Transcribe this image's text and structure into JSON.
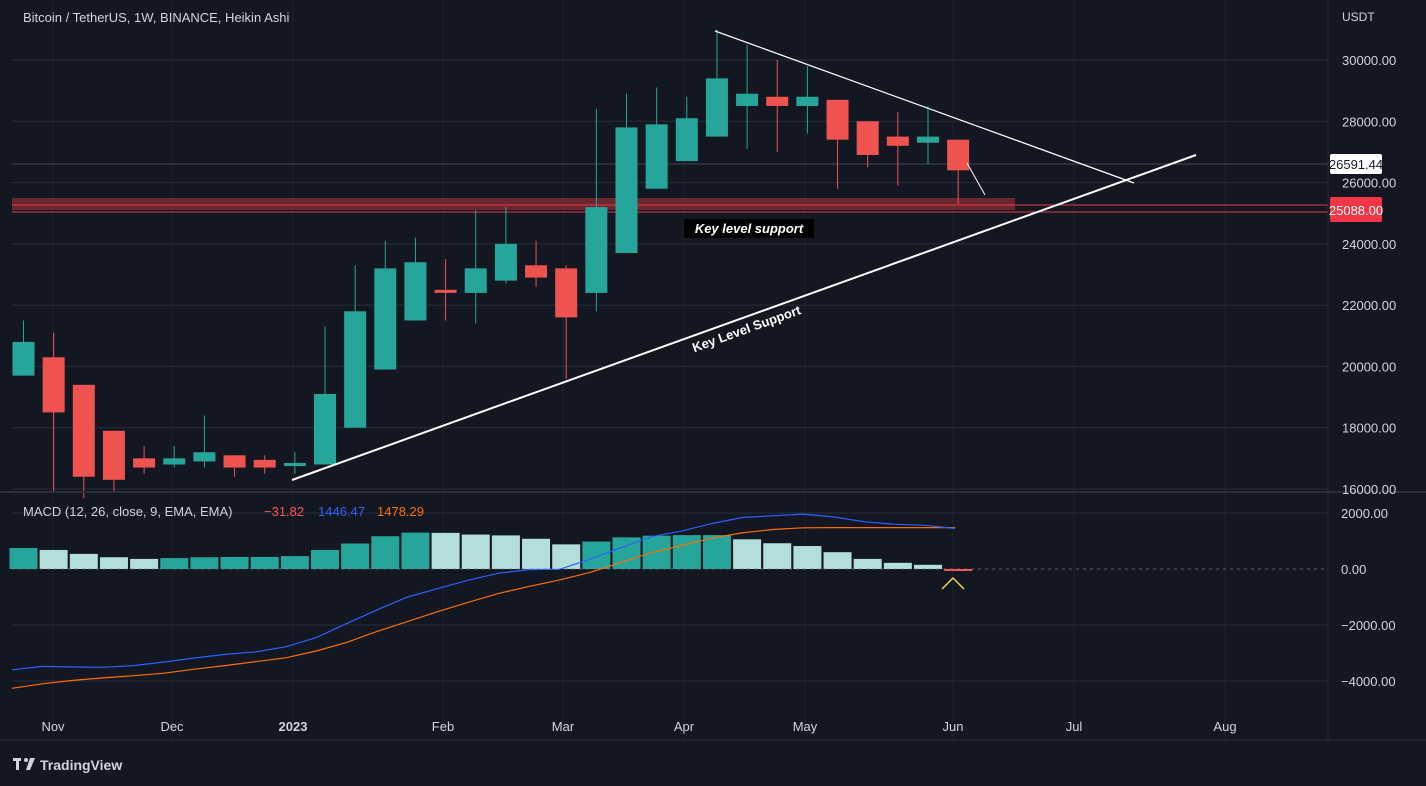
{
  "header": {
    "title": "Bitcoin / TetherUS, 1W, BINANCE, Heikin Ashi",
    "currency": "USDT"
  },
  "footer": {
    "brand": "TradingView"
  },
  "colors": {
    "background": "#131722",
    "up": "#26a69a",
    "down": "#ef5350",
    "grid": "#2a2e39",
    "macd": "#2962ff",
    "signal": "#ff6d00",
    "hist_up_strong": "#26a69a",
    "hist_up_weak": "#b2dfdb",
    "hist_down": "#ff5252",
    "support_zone": "#7a2a33",
    "current_price": "#ffffff",
    "level": "#f23645"
  },
  "price_labels": {
    "current": "26591.44",
    "level": "25088.00"
  },
  "annotations": {
    "zone_label": "Key level support",
    "trendline_label": "Key Level Support"
  },
  "macd_legend": {
    "name": "MACD (12, 26, close, 9, EMA, EMA)",
    "hist": "−31.82",
    "macd": "1446.47",
    "signal": "1478.29"
  },
  "chart_data": [
    {
      "type": "candlestick",
      "title": "Bitcoin / TetherUS, 1W, BINANCE, Heikin Ashi",
      "x_ticks": [
        "Nov",
        "Dec",
        "2023",
        "Feb",
        "Mar",
        "Apr",
        "May",
        "Jun",
        "Jul",
        "Aug"
      ],
      "y_ticks": [
        "16000.00",
        "18000.00",
        "20000.00",
        "22000.00",
        "24000.00",
        "26000.00",
        "28000.00",
        "30000.00"
      ],
      "ylim": [
        16000,
        31500
      ],
      "candles": [
        {
          "o": 19700,
          "h": 21500,
          "l": 19700,
          "c": 20800
        },
        {
          "o": 20300,
          "h": 21100,
          "l": 15900,
          "c": 18500
        },
        {
          "o": 19400,
          "h": 19400,
          "l": 15700,
          "c": 16400
        },
        {
          "o": 17900,
          "h": 17900,
          "l": 15900,
          "c": 16300
        },
        {
          "o": 17000,
          "h": 17400,
          "l": 16500,
          "c": 16700
        },
        {
          "o": 16800,
          "h": 17400,
          "l": 16700,
          "c": 17000
        },
        {
          "o": 16900,
          "h": 18400,
          "l": 16700,
          "c": 17200
        },
        {
          "o": 17100,
          "h": 17100,
          "l": 16400,
          "c": 16700
        },
        {
          "o": 16950,
          "h": 17100,
          "l": 16500,
          "c": 16700
        },
        {
          "o": 16750,
          "h": 17200,
          "l": 16500,
          "c": 16850
        },
        {
          "o": 16800,
          "h": 21300,
          "l": 16800,
          "c": 19100
        },
        {
          "o": 18000,
          "h": 23300,
          "l": 18000,
          "c": 21800
        },
        {
          "o": 19900,
          "h": 24100,
          "l": 19900,
          "c": 23200
        },
        {
          "o": 21500,
          "h": 24200,
          "l": 21500,
          "c": 23400
        },
        {
          "o": 22500,
          "h": 23500,
          "l": 21500,
          "c": 22400
        },
        {
          "o": 22400,
          "h": 25100,
          "l": 21400,
          "c": 23200
        },
        {
          "o": 22800,
          "h": 25200,
          "l": 22700,
          "c": 24000
        },
        {
          "o": 23300,
          "h": 24100,
          "l": 22600,
          "c": 22900
        },
        {
          "o": 23200,
          "h": 23300,
          "l": 19600,
          "c": 21600
        },
        {
          "o": 22400,
          "h": 28400,
          "l": 21800,
          "c": 25200
        },
        {
          "o": 23700,
          "h": 28900,
          "l": 23700,
          "c": 27800
        },
        {
          "o": 25800,
          "h": 29100,
          "l": 25800,
          "c": 27900
        },
        {
          "o": 26700,
          "h": 28800,
          "l": 26700,
          "c": 28100
        },
        {
          "o": 27500,
          "h": 31000,
          "l": 27500,
          "c": 29400
        },
        {
          "o": 28500,
          "h": 30500,
          "l": 27100,
          "c": 28900
        },
        {
          "o": 28800,
          "h": 30000,
          "l": 27000,
          "c": 28500
        },
        {
          "o": 28500,
          "h": 29800,
          "l": 27600,
          "c": 28800
        },
        {
          "o": 28700,
          "h": 28700,
          "l": 25800,
          "c": 27400
        },
        {
          "o": 28000,
          "h": 28000,
          "l": 26500,
          "c": 26900
        },
        {
          "o": 27500,
          "h": 28300,
          "l": 25900,
          "c": 27200
        },
        {
          "o": 27300,
          "h": 28500,
          "l": 26600,
          "c": 27500
        },
        {
          "o": 27400,
          "h": 27400,
          "l": 25300,
          "c": 26400
        }
      ],
      "current_price": 26591.44,
      "horizontal_level": 25088.0
    },
    {
      "type": "macd",
      "name": "MACD (12, 26, close, 9, EMA, EMA)",
      "y_ticks": [
        "2000.00",
        "0.00",
        "−2000.00",
        "−4000.00"
      ],
      "ylim": [
        -4800,
        2400
      ],
      "histogram": [
        750,
        680,
        540,
        420,
        360,
        390,
        420,
        430,
        430,
        460,
        680,
        910,
        1170,
        1300,
        1290,
        1230,
        1200,
        1080,
        880,
        980,
        1130,
        1190,
        1210,
        1210,
        1060,
        920,
        820,
        600,
        360,
        220,
        150,
        -31.82
      ],
      "macd": [
        -3600,
        -3480,
        -3500,
        -3510,
        -3450,
        -3320,
        -3180,
        -3050,
        -2960,
        -2780,
        -2450,
        -1950,
        -1460,
        -1000,
        -700,
        -400,
        -150,
        -20,
        -10,
        350,
        750,
        1150,
        1350,
        1620,
        1840,
        1900,
        1960,
        1860,
        1690,
        1600,
        1560,
        1446.47
      ],
      "signal": [
        -4260,
        -4100,
        -3980,
        -3890,
        -3810,
        -3720,
        -3580,
        -3450,
        -3310,
        -3170,
        -2930,
        -2620,
        -2230,
        -1880,
        -1520,
        -1190,
        -870,
        -620,
        -390,
        -120,
        230,
        580,
        840,
        1100,
        1290,
        1410,
        1470,
        1480,
        1480,
        1480,
        1480,
        1478.29
      ]
    }
  ]
}
